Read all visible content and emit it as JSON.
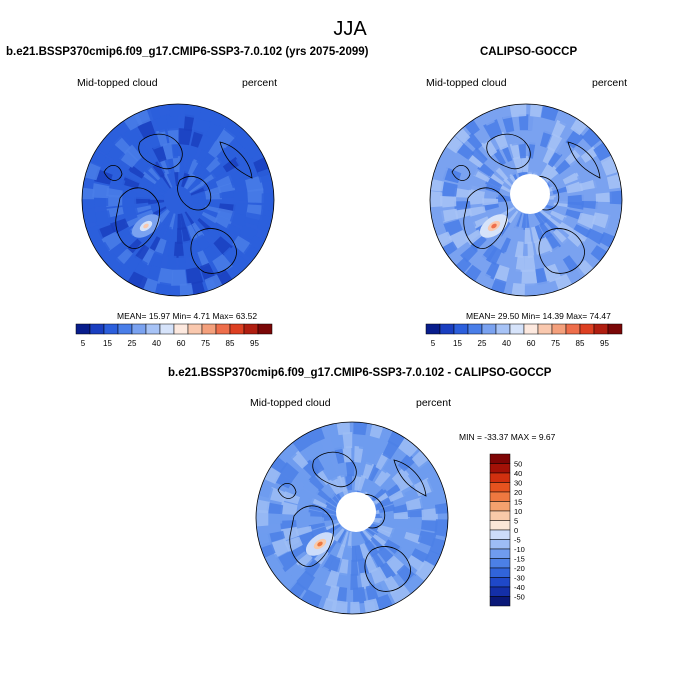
{
  "season": "JJA",
  "colors": {
    "pct": [
      "#081d8c",
      "#1a3fc0",
      "#2c5fdc",
      "#4a7ee8",
      "#7aa2f0",
      "#a7c3f6",
      "#d6e3fa",
      "#fde9df",
      "#f9c8ae",
      "#f4a07c",
      "#ee6e4b",
      "#dd4022",
      "#b01e10",
      "#7a0707"
    ],
    "diff": [
      "#0a1878",
      "#142fa8",
      "#1f48c8",
      "#3164da",
      "#4c80e6",
      "#6f9cef",
      "#9dbdf5",
      "#ccdcfa",
      "#fbe7d7",
      "#f9c9a8",
      "#f4a16e",
      "#ee7840",
      "#e6531f",
      "#d0300f",
      "#a31107",
      "#7e0505"
    ],
    "land_outline": "#000000"
  },
  "panels": [
    {
      "title": "b.e21.BSSP370cmip6.f09_g17.CMIP6-SSP3-7.0.102 (yrs 2075-2099)",
      "left_label": "Mid-topped cloud",
      "right_label": "percent",
      "stats_text": "MEAN=  15.97   Min=    4.71   Max=   63.52",
      "field": {
        "mean": 15.97,
        "min": 4.71,
        "max": 63.52,
        "has_polar_gap": false
      }
    },
    {
      "title": "CALIPSO-GOCCP",
      "left_label": "Mid-topped cloud",
      "right_label": "percent",
      "stats_text": "MEAN=  29.50   Min=   14.39   Max=   74.47",
      "field": {
        "mean": 29.5,
        "min": 14.39,
        "max": 74.47,
        "has_polar_gap": true
      }
    },
    {
      "title": "b.e21.BSSP370cmip6.f09_g17.CMIP6-SSP3-7.0.102 - CALIPSO-GOCCP",
      "left_label": "Mid-topped cloud",
      "right_label": "percent",
      "stats_text": "MIN = -33.37  MAX =    9.67",
      "field": {
        "min": -33.37,
        "max": 9.67,
        "has_polar_gap": true
      }
    }
  ],
  "colorbar_pct": {
    "labels": [
      "5",
      "15",
      "25",
      "40",
      "60",
      "75",
      "85",
      "95"
    ]
  },
  "colorbar_diff": {
    "labels": [
      "50",
      "40",
      "30",
      "20",
      "15",
      "10",
      "5",
      "0",
      "-5",
      "-10",
      "-15",
      "-20",
      "-30",
      "-40",
      "-50"
    ]
  }
}
